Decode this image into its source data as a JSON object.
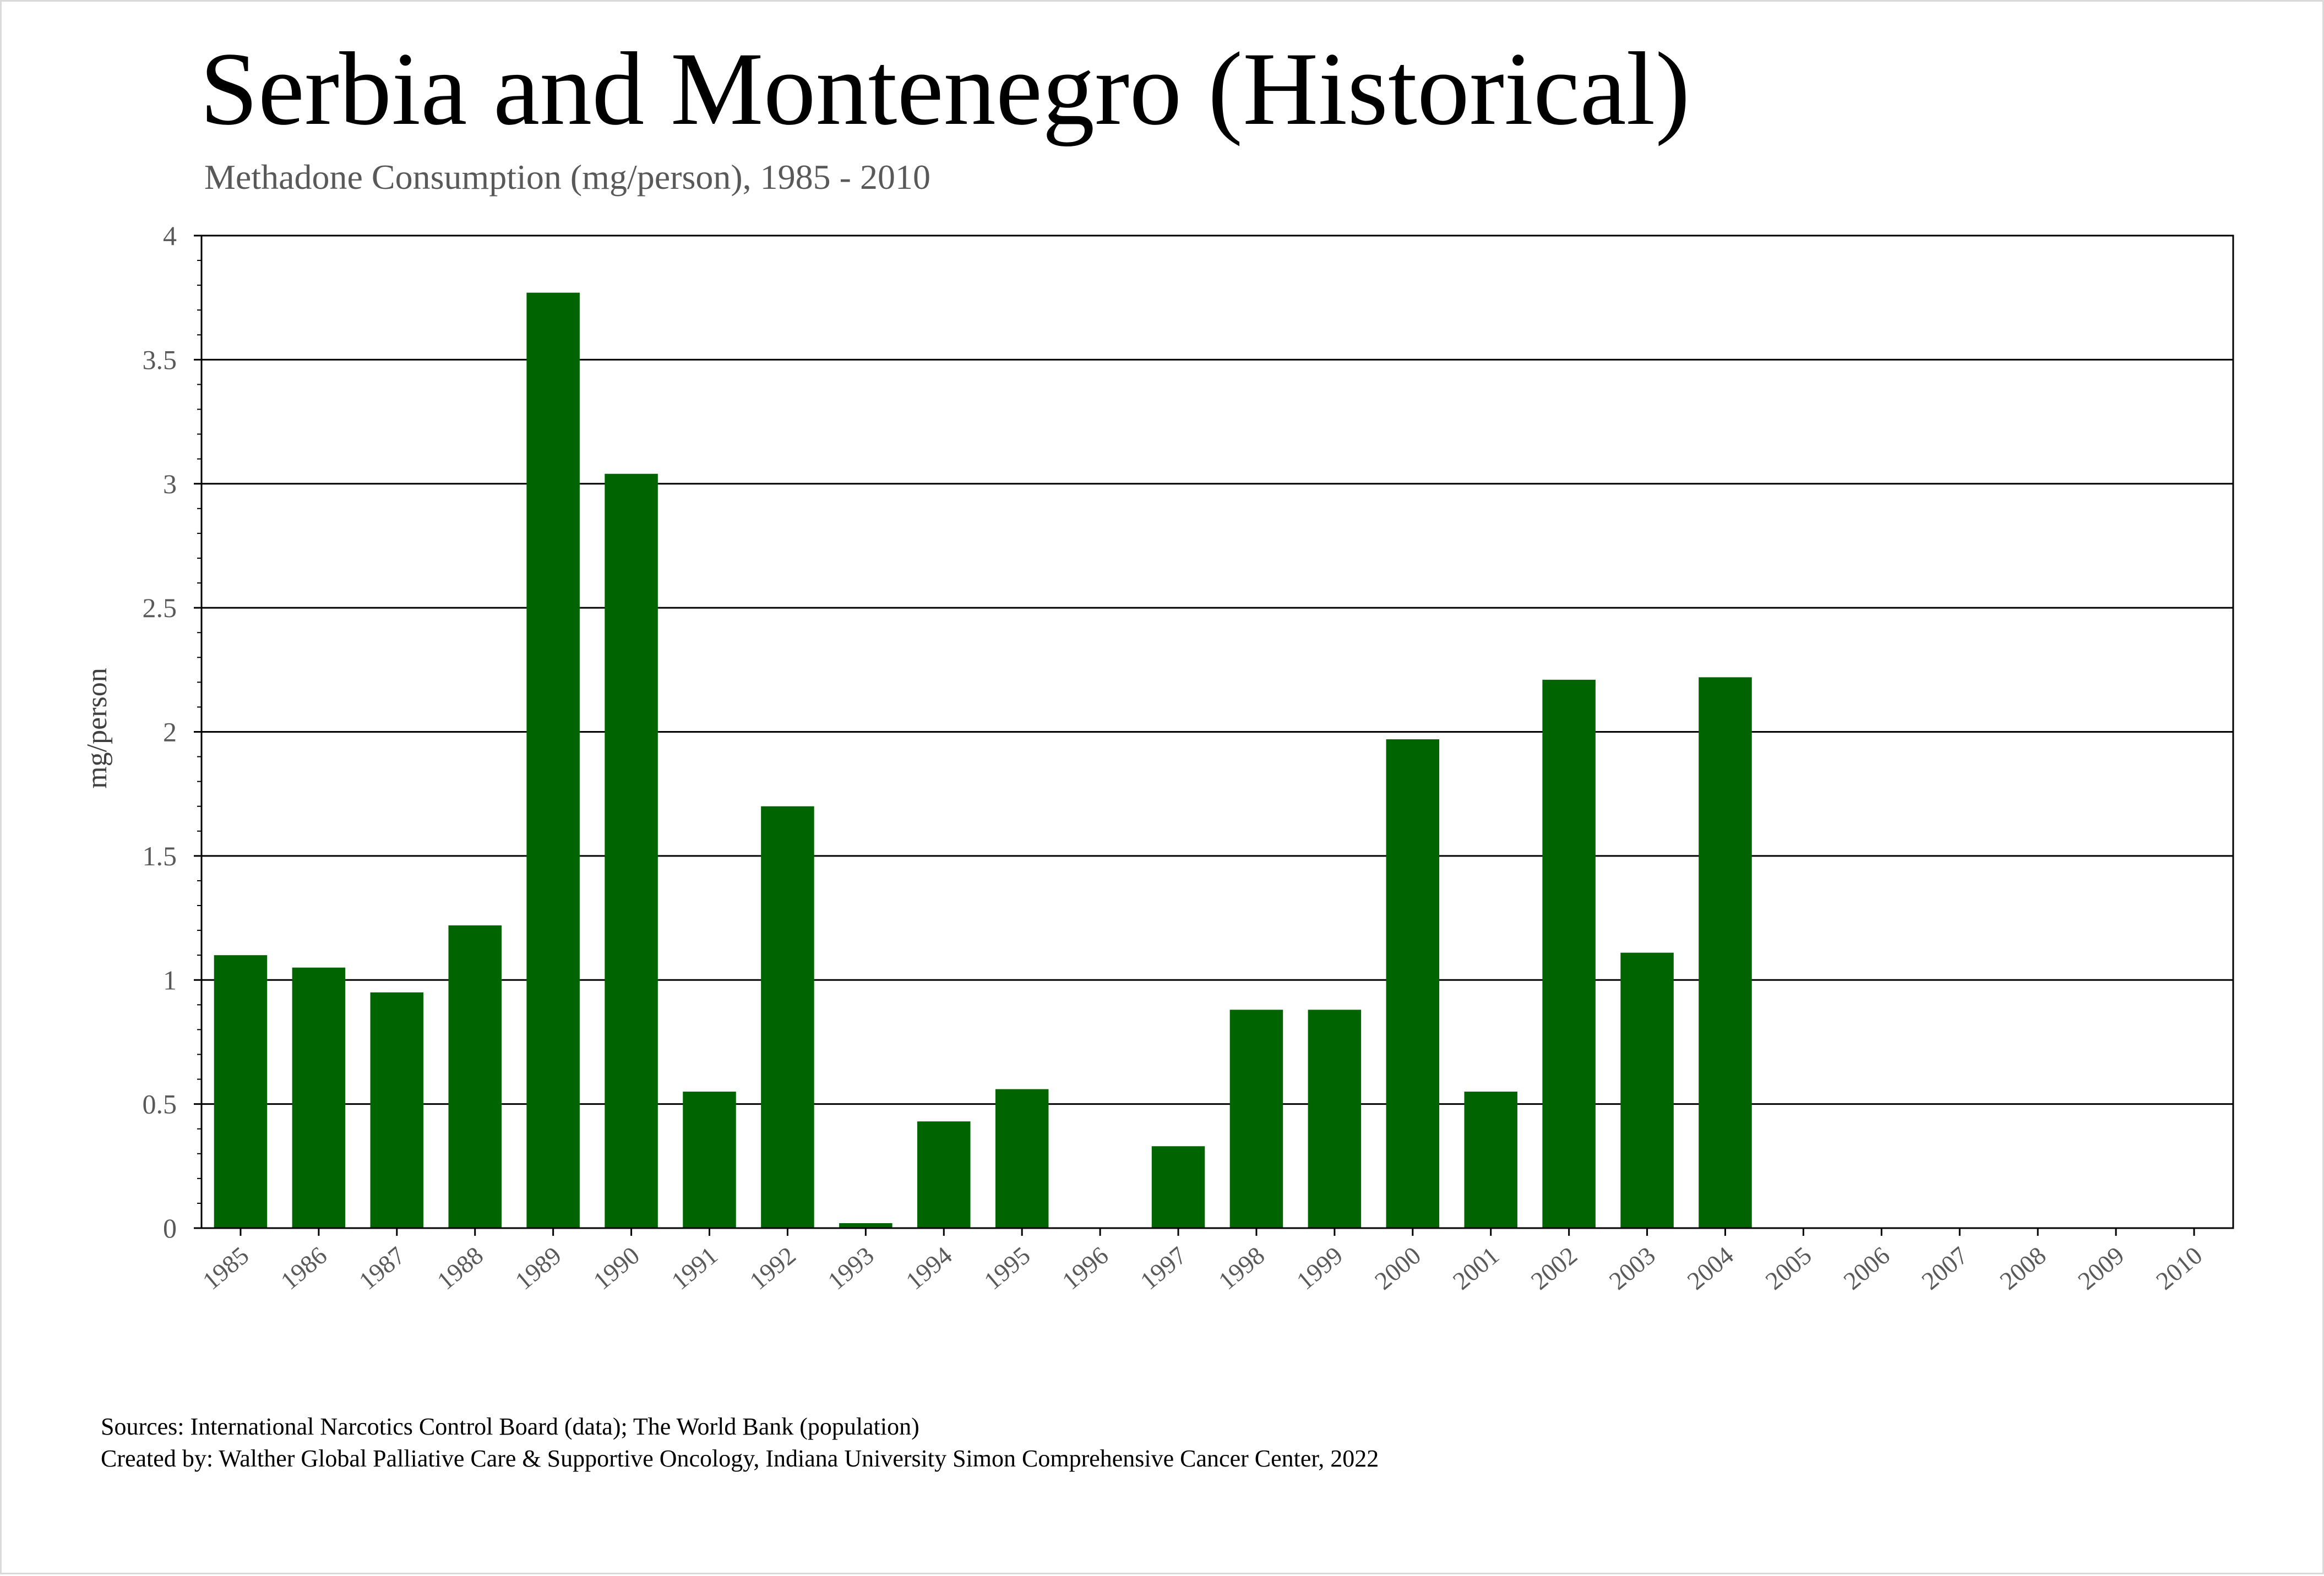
{
  "title": "Serbia and Montenegro (Historical)",
  "subtitle": "Methadone Consumption (mg/person), 1985 - 2010",
  "footer": {
    "sources": "Sources: International Narcotics Control Board (data); The World Bank (population)",
    "created_by": "Created by: Walther Global Palliative Care & Supportive Oncology, Indiana University Simon Comprehensive Cancer Center, 2022"
  },
  "colors": {
    "bar": "#006400",
    "gridline": "#000000",
    "tick_label": "#595959"
  },
  "chart_data": {
    "type": "bar",
    "title": "Serbia and Montenegro (Historical)",
    "subtitle": "Methadone Consumption (mg/person), 1985 - 2010",
    "xlabel": "",
    "ylabel": "mg/person",
    "ylim": [
      0,
      4
    ],
    "yticks": [
      0,
      0.5,
      1,
      1.5,
      2,
      2.5,
      3,
      3.5,
      4
    ],
    "ytick_labels": [
      "0",
      "0.5",
      "1",
      "1.5",
      "2",
      "2.5",
      "3",
      "3.5",
      "4"
    ],
    "grid": true,
    "legend": "none",
    "categories": [
      "1985",
      "1986",
      "1987",
      "1988",
      "1989",
      "1990",
      "1991",
      "1992",
      "1993",
      "1994",
      "1995",
      "1996",
      "1997",
      "1998",
      "1999",
      "2000",
      "2001",
      "2002",
      "2003",
      "2004",
      "2005",
      "2006",
      "2007",
      "2008",
      "2009",
      "2010"
    ],
    "values": [
      1.1,
      1.05,
      0.95,
      1.22,
      3.77,
      3.04,
      0.55,
      1.7,
      0.02,
      0.43,
      0.56,
      0,
      0.33,
      0.88,
      0.88,
      1.97,
      0.55,
      2.21,
      1.11,
      2.22,
      null,
      null,
      null,
      null,
      null,
      null
    ]
  }
}
